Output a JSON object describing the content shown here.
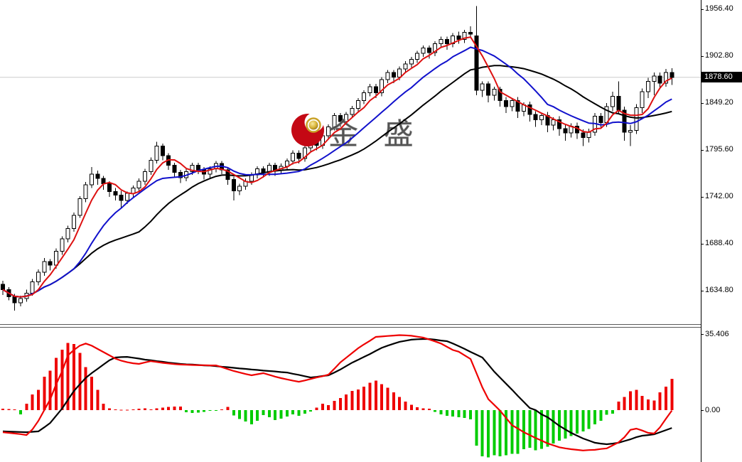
{
  "watermark": {
    "text": "金 盛",
    "logo": "jinsheng-brand-logo"
  },
  "price_axis": {
    "labels": [
      "1956.40",
      "1902.80",
      "1849.20",
      "1795.60",
      "1742.00",
      "1688.40",
      "1634.80"
    ],
    "current": "1878.60"
  },
  "indicator_axis": {
    "labels": [
      "35.406",
      "0.00"
    ]
  },
  "chart_data": [
    {
      "type": "candlestick",
      "title": "",
      "y_ticks": [
        1956.4,
        1902.8,
        1849.2,
        1795.6,
        1742.0,
        1688.4,
        1634.8
      ],
      "current_price": 1878.6,
      "grid": "single horizontal line at current price",
      "legend_position": "none",
      "ma_periods": {
        "fast": 5,
        "mid": 13,
        "slow": 24
      },
      "colors": {
        "up": "#ffffff",
        "down": "#000000",
        "wick": "#000000",
        "ma_fast": "#dd1111",
        "ma_mid": "#1111cc",
        "ma_slow": "#000000",
        "grid": "#cccccc",
        "current_bg": "#000000",
        "current_fg": "#ffffff"
      },
      "candles": [
        [
          1642,
          1646,
          1630,
          1636
        ],
        [
          1636,
          1639,
          1624,
          1628
        ],
        [
          1628,
          1631,
          1612,
          1621
        ],
        [
          1621,
          1629,
          1617,
          1626
        ],
        [
          1626,
          1636,
          1622,
          1632
        ],
        [
          1632,
          1648,
          1629,
          1645
        ],
        [
          1645,
          1659,
          1641,
          1656
        ],
        [
          1656,
          1672,
          1652,
          1668
        ],
        [
          1668,
          1671,
          1658,
          1664
        ],
        [
          1664,
          1683,
          1660,
          1680
        ],
        [
          1680,
          1697,
          1676,
          1694
        ],
        [
          1694,
          1709,
          1690,
          1706
        ],
        [
          1706,
          1724,
          1702,
          1721
        ],
        [
          1721,
          1743,
          1718,
          1740
        ],
        [
          1740,
          1759,
          1736,
          1756
        ],
        [
          1756,
          1776,
          1752,
          1768
        ],
        [
          1768,
          1772,
          1756,
          1763
        ],
        [
          1763,
          1766,
          1750,
          1757
        ],
        [
          1757,
          1760,
          1742,
          1748
        ],
        [
          1748,
          1752,
          1738,
          1744
        ],
        [
          1744,
          1749,
          1730,
          1738
        ],
        [
          1738,
          1748,
          1734,
          1746
        ],
        [
          1746,
          1755,
          1741,
          1752
        ],
        [
          1752,
          1763,
          1748,
          1760
        ],
        [
          1760,
          1774,
          1756,
          1771
        ],
        [
          1771,
          1787,
          1767,
          1784
        ],
        [
          1784,
          1805,
          1780,
          1800
        ],
        [
          1800,
          1803,
          1784,
          1789
        ],
        [
          1789,
          1792,
          1773,
          1778
        ],
        [
          1778,
          1781,
          1765,
          1770
        ],
        [
          1770,
          1773,
          1758,
          1764
        ],
        [
          1764,
          1774,
          1760,
          1771
        ],
        [
          1771,
          1781,
          1767,
          1778
        ],
        [
          1778,
          1781,
          1768,
          1773
        ],
        [
          1773,
          1776,
          1762,
          1768
        ],
        [
          1768,
          1777,
          1764,
          1774
        ],
        [
          1774,
          1783,
          1770,
          1780
        ],
        [
          1780,
          1783,
          1768,
          1773
        ],
        [
          1773,
          1776,
          1756,
          1762
        ],
        [
          1762,
          1765,
          1738,
          1749
        ],
        [
          1749,
          1757,
          1744,
          1754
        ],
        [
          1754,
          1763,
          1750,
          1760
        ],
        [
          1760,
          1770,
          1756,
          1767
        ],
        [
          1767,
          1777,
          1763,
          1774
        ],
        [
          1774,
          1777,
          1764,
          1770
        ],
        [
          1770,
          1781,
          1766,
          1778
        ],
        [
          1778,
          1781,
          1766,
          1772
        ],
        [
          1772,
          1780,
          1768,
          1777
        ],
        [
          1777,
          1786,
          1773,
          1783
        ],
        [
          1783,
          1795,
          1779,
          1792
        ],
        [
          1792,
          1795,
          1780,
          1786
        ],
        [
          1786,
          1801,
          1782,
          1798
        ],
        [
          1798,
          1811,
          1794,
          1808
        ],
        [
          1808,
          1811,
          1795,
          1801
        ],
        [
          1801,
          1815,
          1797,
          1812
        ],
        [
          1812,
          1825,
          1808,
          1822
        ],
        [
          1822,
          1838,
          1818,
          1835
        ],
        [
          1835,
          1838,
          1822,
          1828
        ],
        [
          1828,
          1839,
          1824,
          1836
        ],
        [
          1836,
          1846,
          1832,
          1843
        ],
        [
          1843,
          1855,
          1839,
          1852
        ],
        [
          1852,
          1864,
          1848,
          1861
        ],
        [
          1861,
          1871,
          1857,
          1868
        ],
        [
          1868,
          1871,
          1855,
          1861
        ],
        [
          1861,
          1879,
          1857,
          1876
        ],
        [
          1876,
          1887,
          1872,
          1884
        ],
        [
          1884,
          1887,
          1872,
          1879
        ],
        [
          1879,
          1891,
          1875,
          1888
        ],
        [
          1888,
          1897,
          1884,
          1894
        ],
        [
          1894,
          1902,
          1890,
          1899
        ],
        [
          1899,
          1909,
          1895,
          1906
        ],
        [
          1906,
          1915,
          1902,
          1912
        ],
        [
          1912,
          1915,
          1900,
          1907
        ],
        [
          1907,
          1920,
          1903,
          1917
        ],
        [
          1917,
          1925,
          1913,
          1922
        ],
        [
          1922,
          1925,
          1910,
          1917
        ],
        [
          1917,
          1929,
          1913,
          1926
        ],
        [
          1926,
          1931,
          1917,
          1922
        ],
        [
          1922,
          1933,
          1918,
          1930
        ],
        [
          1930,
          1937,
          1924,
          1928
        ],
        [
          1926,
          1960,
          1858,
          1864
        ],
        [
          1864,
          1874,
          1856,
          1871
        ],
        [
          1871,
          1874,
          1850,
          1858
        ],
        [
          1858,
          1868,
          1852,
          1865
        ],
        [
          1865,
          1868,
          1845,
          1852
        ],
        [
          1852,
          1856,
          1838,
          1845
        ],
        [
          1845,
          1855,
          1840,
          1852
        ],
        [
          1852,
          1856,
          1832,
          1840
        ],
        [
          1840,
          1850,
          1834,
          1847
        ],
        [
          1847,
          1851,
          1828,
          1836
        ],
        [
          1836,
          1840,
          1822,
          1830
        ],
        [
          1830,
          1838,
          1824,
          1835
        ],
        [
          1835,
          1839,
          1816,
          1824
        ],
        [
          1824,
          1833,
          1818,
          1830
        ],
        [
          1830,
          1834,
          1812,
          1820
        ],
        [
          1820,
          1824,
          1806,
          1815
        ],
        [
          1815,
          1826,
          1810,
          1823
        ],
        [
          1823,
          1827,
          1808,
          1815
        ],
        [
          1815,
          1819,
          1800,
          1810
        ],
        [
          1810,
          1820,
          1804,
          1816
        ],
        [
          1816,
          1838,
          1812,
          1834
        ],
        [
          1834,
          1838,
          1820,
          1827
        ],
        [
          1827,
          1849,
          1822,
          1845
        ],
        [
          1845,
          1862,
          1840,
          1857
        ],
        [
          1857,
          1874,
          1836,
          1841
        ],
        [
          1841,
          1845,
          1806,
          1816
        ],
        [
          1816,
          1824,
          1800,
          1818
        ],
        [
          1818,
          1848,
          1814,
          1844
        ],
        [
          1844,
          1866,
          1838,
          1862
        ],
        [
          1862,
          1878,
          1855,
          1874
        ],
        [
          1874,
          1884,
          1858,
          1880
        ],
        [
          1880,
          1884,
          1866,
          1872
        ],
        [
          1872,
          1888,
          1868,
          1884
        ],
        [
          1884,
          1889,
          1870,
          1878.6
        ]
      ]
    },
    {
      "type": "bar",
      "subtype": "oscillator histogram with fast/slow lines",
      "y_ticks": [
        35.406,
        0.0
      ],
      "colors": {
        "pos": "#ee0000",
        "neg": "#00cc00",
        "fast": "#ee0000",
        "slow": "#000000"
      },
      "histogram": [
        0.6,
        0.5,
        0.4,
        -2,
        2.9,
        7.3,
        9.5,
        15.6,
        18.3,
        24.4,
        28.2,
        31.2,
        30.8,
        26.6,
        20,
        15.6,
        9.5,
        2.9,
        0.9,
        0.4,
        0.2,
        0.1,
        0.3,
        0.6,
        0.8,
        0.4,
        0.9,
        1.2,
        1.5,
        1.6,
        1.7,
        -1,
        -1.3,
        -1.1,
        -0.8,
        -0.4,
        -0.3,
        0.4,
        1.5,
        -2.5,
        -4.2,
        -5.3,
        -6.6,
        -5,
        -2.3,
        -3.3,
        -4.6,
        -4,
        -3,
        -2,
        -2.6,
        -1.7,
        -0.7,
        1.2,
        3,
        2.3,
        4.3,
        5.6,
        7.3,
        8.9,
        9.6,
        11,
        12.7,
        13.8,
        12.1,
        10.5,
        8.3,
        6.1,
        3.9,
        2.4,
        1.3,
        0.9,
        0.6,
        -0.8,
        -2,
        -2.6,
        -3,
        -3.3,
        -3.6,
        -4.3,
        -16.5,
        -21.5,
        -22,
        -21,
        -21.5,
        -21,
        -20.4,
        -20.4,
        -18.2,
        -17.6,
        -18.7,
        -18,
        -17,
        -15.5,
        -14.3,
        -13.2,
        -12.1,
        -11,
        -9.9,
        -8.8,
        -6.6,
        -5,
        -2.2,
        -1.7,
        3.9,
        6.1,
        8.8,
        9.4,
        6.6,
        5,
        4.4,
        8.3,
        11,
        14.6
      ],
      "lines": {
        "fast": [
          -10.3,
          -10.6,
          -10.9,
          -11.2,
          -11.6,
          -9,
          -5,
          0,
          5,
          12,
          18,
          25.5,
          28,
          30,
          31,
          30,
          28.5,
          27,
          25.5,
          24,
          23,
          22.3,
          21.8,
          21.5,
          22.2,
          22.8,
          22.4,
          22,
          21.7,
          21.4,
          21.2,
          21.1,
          21,
          20.9,
          20.9,
          20.8,
          20.8,
          20,
          19.1,
          18.2,
          17.5,
          16.8,
          16.2,
          16.7,
          17.2,
          16.4,
          15.6,
          14.9,
          14.3,
          13.7,
          13.2,
          13.8,
          14.5,
          15.2,
          15.8,
          16.5,
          19.3,
          22.2,
          24.4,
          26.6,
          28.8,
          30.6,
          32.3,
          34.1,
          34.3,
          34.5,
          34.7,
          34.9,
          34.8,
          34.6,
          34.2,
          33.8,
          32.9,
          32,
          31,
          29.5,
          28,
          27.2,
          25.5,
          23.8,
          17.2,
          10.6,
          5.1,
          2.4,
          -0.3,
          -3.6,
          -7,
          -8.6,
          -10.3,
          -11.6,
          -13,
          -14.2,
          -15.5,
          -16.4,
          -17.3,
          -17.8,
          -18.2,
          -18.5,
          -18.8,
          -18.6,
          -18.5,
          -18.1,
          -17.8,
          -16.4,
          -15,
          -12.6,
          -9.2,
          -8.6,
          -9.5,
          -10.6,
          -10.9,
          -8,
          -4,
          -0.2
        ],
        "slow": [
          -9.9,
          -10,
          -10.1,
          -10.2,
          -10.3,
          -10.1,
          -9.9,
          -8,
          -6,
          -2.6,
          0.7,
          4.8,
          8.9,
          12,
          15,
          17.2,
          19.2,
          21.2,
          23.2,
          24.5,
          24.7,
          24.8,
          24.4,
          24,
          23.5,
          23.2,
          22.8,
          22.5,
          22.1,
          21.8,
          21.5,
          21.3,
          21.2,
          21,
          20.8,
          20.7,
          20.5,
          20.2,
          20,
          19.7,
          19.4,
          19.2,
          18.9,
          18.7,
          18.4,
          18.2,
          18,
          17.7,
          17.5,
          16.9,
          16.4,
          15.8,
          15.2,
          15.5,
          15.9,
          16.2,
          17.5,
          18.9,
          20.5,
          22.1,
          23.4,
          24.8,
          26.1,
          27.6,
          29,
          30,
          30.9,
          31.8,
          32.3,
          32.8,
          33,
          33.1,
          33.1,
          32.8,
          32.4,
          32.1,
          31,
          29.8,
          28.5,
          27.1,
          25.8,
          24.5,
          21.2,
          17.9,
          15.1,
          12.3,
          9.5,
          6.6,
          3.8,
          1,
          0,
          -2,
          -3.3,
          -5.3,
          -7.3,
          -9,
          -10.6,
          -11.9,
          -13.2,
          -14.2,
          -15.2,
          -15.6,
          -15.9,
          -15.6,
          -15.2,
          -14.4,
          -13.6,
          -12.6,
          -11.9,
          -11.6,
          -11.3,
          -10.3,
          -9.3,
          -8.3
        ]
      }
    }
  ]
}
